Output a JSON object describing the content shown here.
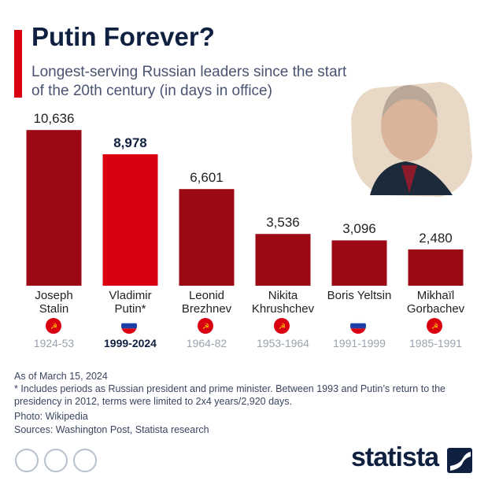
{
  "chart_data": {
    "type": "bar",
    "title": "Putin Forever?",
    "subtitle": "Longest-serving Russian leaders since the start of the 20th century (in days in office)",
    "categories": [
      "Joseph Stalin",
      "Vladimir Putin*",
      "Leonid Brezhnev",
      "Nikita Khrushchev",
      "Boris Yeltsin",
      "Mikhaïl Gorbachev"
    ],
    "values": [
      10636,
      8978,
      6601,
      3536,
      3096,
      2480
    ],
    "value_labels": [
      "10,636",
      "8,978",
      "6,601",
      "3,536",
      "3,096",
      "2,480"
    ],
    "periods": [
      "1924-53",
      "1999-2024",
      "1964-82",
      "1953-1964",
      "1991-1999",
      "1985-1991"
    ],
    "colors": [
      "#9b0a14",
      "#d90011",
      "#9b0a14",
      "#9b0a14",
      "#9b0a14",
      "#9b0a14"
    ],
    "highlight_index": 1,
    "ylim": [
      0,
      10700
    ]
  },
  "footer": {
    "date": "As of March 15, 2024",
    "note": "* Includes periods as Russian president and prime minister. Between 1993 and Putin’s return to the presidency in 2012, terms were limited to 2x4 years/2,920 days.",
    "photo": "Photo: Wikipedia",
    "sources": "Sources: Washington Post, Statista research",
    "logo": "statista"
  }
}
